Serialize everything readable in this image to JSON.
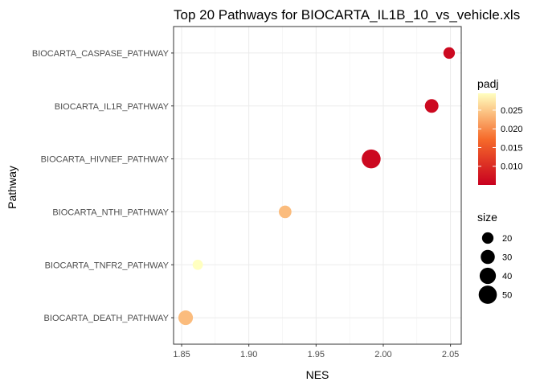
{
  "chart_data": {
    "type": "scatter",
    "title": "Top 20 Pathways for  BIOCARTA_IL1B_10_vs_vehicle.xls",
    "xlabel": "NES",
    "ylabel": "Pathway",
    "xlim": [
      1.844,
      2.058
    ],
    "x_ticks": [
      1.85,
      1.9,
      1.95,
      2.0,
      2.05
    ],
    "x_tick_labels": [
      "1.85",
      "1.90",
      "1.95",
      "2.00",
      "2.05"
    ],
    "categories": [
      "BIOCARTA_DEATH_PATHWAY",
      "BIOCARTA_TNFR2_PATHWAY",
      "BIOCARTA_NTHI_PATHWAY",
      "BIOCARTA_HIVNEF_PATHWAY",
      "BIOCARTA_IL1R_PATHWAY",
      "BIOCARTA_CASPASE_PATHWAY"
    ],
    "points": [
      {
        "pathway": "BIOCARTA_CASPASE_PATHWAY",
        "nes": 2.049,
        "padj": 0.006,
        "size": 20
      },
      {
        "pathway": "BIOCARTA_IL1R_PATHWAY",
        "nes": 2.036,
        "padj": 0.006,
        "size": 28
      },
      {
        "pathway": "BIOCARTA_HIVNEF_PATHWAY",
        "nes": 1.991,
        "padj": 0.006,
        "size": 54
      },
      {
        "pathway": "BIOCARTA_NTHI_PATHWAY",
        "nes": 1.927,
        "padj": 0.024,
        "size": 24
      },
      {
        "pathway": "BIOCARTA_TNFR2_PATHWAY",
        "nes": 1.862,
        "padj": 0.03,
        "size": 16
      },
      {
        "pathway": "BIOCARTA_DEATH_PATHWAY",
        "nes": 1.853,
        "padj": 0.024,
        "size": 32
      }
    ],
    "grid": true,
    "legend_position": "right",
    "color_legend": {
      "title": "padj",
      "range": [
        0.005,
        0.0295
      ],
      "ticks": [
        0.01,
        0.015,
        0.02,
        0.025
      ],
      "tick_labels": [
        "0.010",
        "0.015",
        "0.020",
        "0.025"
      ],
      "low_color": "#c8001f",
      "mid_color": "#f66a2a",
      "high_color": "#ffffc0"
    },
    "size_legend": {
      "title": "size",
      "values": [
        20,
        30,
        40,
        50
      ],
      "labels": [
        "20",
        "30",
        "40",
        "50"
      ],
      "color": "#000000"
    }
  }
}
